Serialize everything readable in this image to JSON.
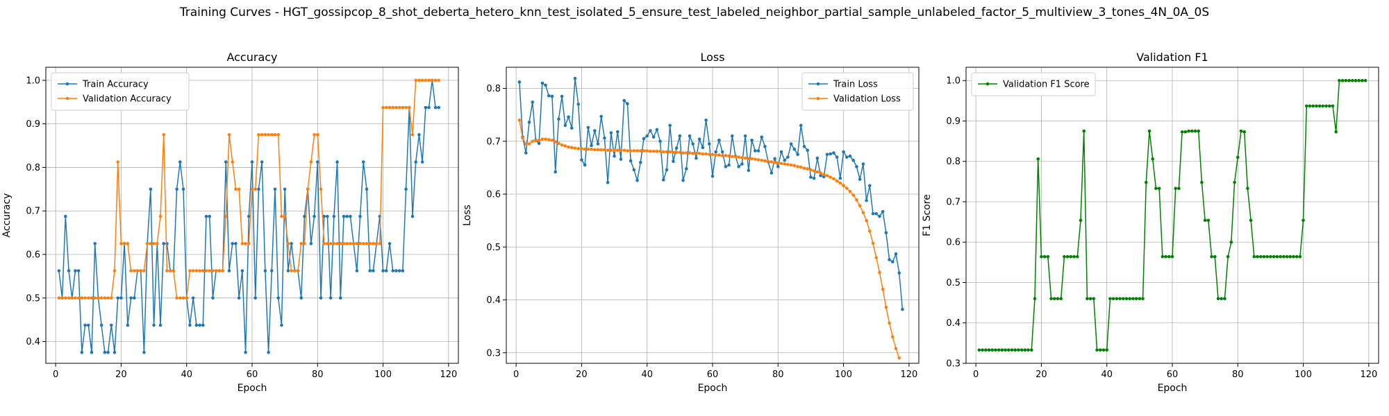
{
  "figure_title": "Training Curves - HGT_gossipcop_8_shot_deberta_hetero_knn_test_isolated_5_ensure_test_labeled_neighbor_partial_sample_unlabeled_factor_5_multiview_3_tones_4N_0A_0S",
  "chart_data": [
    {
      "type": "line",
      "title": "Accuracy",
      "xlabel": "Epoch",
      "ylabel": "Accuracy",
      "xlim": [
        -3,
        123
      ],
      "ylim": [
        0.35,
        1.03
      ],
      "xticks": [
        0,
        20,
        40,
        60,
        80,
        100,
        120
      ],
      "yticks": [
        0.4,
        0.5,
        0.6,
        0.7,
        0.8,
        0.9,
        1.0
      ],
      "grid": true,
      "legend_position": "upper-left",
      "series": [
        {
          "name": "Train Accuracy",
          "color": "#1f77b4",
          "x_start": 1,
          "values": [
            0.5625,
            0.5,
            0.6875,
            0.5625,
            0.5,
            0.5625,
            0.5625,
            0.375,
            0.4375,
            0.4375,
            0.375,
            0.625,
            0.5,
            0.4375,
            0.375,
            0.375,
            0.4375,
            0.375,
            0.5,
            0.5,
            0.625,
            0.4375,
            0.5,
            0.5,
            0.5625,
            0.5625,
            0.375,
            0.625,
            0.75,
            0.4375,
            0.625,
            0.4375,
            0.625,
            0.625,
            0.5625,
            0.5625,
            0.75,
            0.8125,
            0.75,
            0.5,
            0.4375,
            0.5,
            0.4375,
            0.4375,
            0.4375,
            0.6875,
            0.6875,
            0.5,
            0.5625,
            0.5625,
            0.5625,
            0.8125,
            0.5625,
            0.625,
            0.625,
            0.5,
            0.5625,
            0.375,
            0.6875,
            0.8125,
            0.5,
            0.75,
            0.8125,
            0.5625,
            0.375,
            0.5625,
            0.75,
            0.5,
            0.4375,
            0.75,
            0.5625,
            0.625,
            0.5625,
            0.5625,
            0.5,
            0.6875,
            0.75,
            0.625,
            0.6875,
            0.8125,
            0.5,
            0.6875,
            0.6875,
            0.5,
            0.6875,
            0.8125,
            0.5,
            0.6875,
            0.6875,
            0.6875,
            0.625,
            0.5625,
            0.6875,
            0.8125,
            0.75,
            0.5625,
            0.5625,
            0.625,
            0.6875,
            0.5625,
            0.5625,
            0.625,
            0.5625,
            0.5625,
            0.5625,
            0.5625,
            0.75,
            0.9375,
            0.6875,
            0.8125,
            0.875,
            0.8125,
            0.9375,
            0.9375,
            1.0,
            0.9375,
            0.9375
          ]
        },
        {
          "name": "Validation Accuracy",
          "color": "#ff7f0e",
          "x_start": 1,
          "values": [
            0.5,
            0.5,
            0.5,
            0.5,
            0.5,
            0.5,
            0.5,
            0.5,
            0.5,
            0.5,
            0.5,
            0.5,
            0.5,
            0.5,
            0.5,
            0.5,
            0.5,
            0.5625,
            0.8125,
            0.625,
            0.625,
            0.625,
            0.5625,
            0.5625,
            0.5625,
            0.5625,
            0.5625,
            0.625,
            0.625,
            0.625,
            0.625,
            0.6875,
            0.875,
            0.5625,
            0.5625,
            0.5625,
            0.5,
            0.5,
            0.5,
            0.5,
            0.5625,
            0.5625,
            0.5625,
            0.5625,
            0.5625,
            0.5625,
            0.5625,
            0.5625,
            0.5625,
            0.5625,
            0.5625,
            0.6875,
            0.875,
            0.8125,
            0.75,
            0.75,
            0.625,
            0.625,
            0.625,
            0.75,
            0.75,
            0.875,
            0.875,
            0.875,
            0.875,
            0.875,
            0.875,
            0.875,
            0.6875,
            0.6875,
            0.625,
            0.5625,
            0.5625,
            0.5625,
            0.625,
            0.625,
            0.75,
            0.8125,
            0.875,
            0.875,
            0.75,
            0.625,
            0.625,
            0.625,
            0.625,
            0.625,
            0.625,
            0.625,
            0.625,
            0.625,
            0.625,
            0.625,
            0.625,
            0.625,
            0.625,
            0.625,
            0.625,
            0.625,
            0.625,
            0.9375,
            0.9375,
            0.9375,
            0.9375,
            0.9375,
            0.9375,
            0.9375,
            0.9375,
            0.9375,
            0.875,
            1.0,
            1.0,
            1.0,
            1.0,
            1.0,
            1.0,
            1.0,
            1.0
          ]
        }
      ]
    },
    {
      "type": "line",
      "title": "Loss",
      "xlabel": "Epoch",
      "ylabel": "Loss",
      "xlim": [
        -3,
        123
      ],
      "ylim": [
        0.28,
        0.84
      ],
      "xticks": [
        0,
        20,
        40,
        60,
        80,
        100,
        120
      ],
      "yticks": [
        0.3,
        0.4,
        0.5,
        0.6,
        0.7,
        0.8
      ],
      "grid": true,
      "legend_position": "upper-right",
      "series": [
        {
          "name": "Train Loss",
          "color": "#1f77b4",
          "x_start": 1,
          "values": [
            0.812,
            0.708,
            0.678,
            0.736,
            0.774,
            0.702,
            0.696,
            0.81,
            0.806,
            0.786,
            0.785,
            0.642,
            0.742,
            0.785,
            0.73,
            0.746,
            0.725,
            0.819,
            0.77,
            0.665,
            0.655,
            0.726,
            0.692,
            0.72,
            0.695,
            0.747,
            0.706,
            0.622,
            0.716,
            0.672,
            0.718,
            0.666,
            0.777,
            0.771,
            0.663,
            0.646,
            0.626,
            0.66,
            0.705,
            0.71,
            0.72,
            0.708,
            0.722,
            0.7,
            0.627,
            0.646,
            0.73,
            0.662,
            0.687,
            0.71,
            0.626,
            0.648,
            0.71,
            0.695,
            0.668,
            0.704,
            0.688,
            0.74,
            0.695,
            0.634,
            0.68,
            0.702,
            0.68,
            0.652,
            0.655,
            0.71,
            0.672,
            0.652,
            0.657,
            0.71,
            0.645,
            0.702,
            0.682,
            0.682,
            0.708,
            0.69,
            0.661,
            0.64,
            0.667,
            0.652,
            0.68,
            0.664,
            0.67,
            0.695,
            0.685,
            0.675,
            0.73,
            0.69,
            0.683,
            0.632,
            0.63,
            0.668,
            0.635,
            0.633,
            0.675,
            0.676,
            0.678,
            0.67,
            0.63,
            0.68,
            0.67,
            0.672,
            0.664,
            0.652,
            0.628,
            0.657,
            0.588,
            0.616,
            0.563,
            0.563,
            0.558,
            0.567,
            0.527,
            0.476,
            0.472,
            0.487,
            0.451,
            0.382
          ]
        },
        {
          "name": "Validation Loss",
          "color": "#ff7f0e",
          "x_start": 1,
          "values": [
            0.74,
            0.706,
            0.695,
            0.695,
            0.7,
            0.701,
            0.702,
            0.704,
            0.704,
            0.703,
            0.702,
            0.699,
            0.696,
            0.693,
            0.691,
            0.689,
            0.688,
            0.687,
            0.686,
            0.686,
            0.685,
            0.685,
            0.685,
            0.684,
            0.684,
            0.684,
            0.684,
            0.683,
            0.683,
            0.683,
            0.683,
            0.683,
            0.683,
            0.682,
            0.682,
            0.682,
            0.682,
            0.682,
            0.682,
            0.682,
            0.681,
            0.681,
            0.681,
            0.681,
            0.68,
            0.68,
            0.68,
            0.679,
            0.679,
            0.679,
            0.678,
            0.678,
            0.678,
            0.677,
            0.677,
            0.677,
            0.676,
            0.676,
            0.675,
            0.675,
            0.674,
            0.674,
            0.673,
            0.673,
            0.672,
            0.671,
            0.671,
            0.67,
            0.669,
            0.668,
            0.667,
            0.667,
            0.666,
            0.665,
            0.664,
            0.663,
            0.662,
            0.661,
            0.66,
            0.659,
            0.658,
            0.657,
            0.656,
            0.655,
            0.654,
            0.652,
            0.651,
            0.649,
            0.648,
            0.646,
            0.644,
            0.642,
            0.64,
            0.637,
            0.635,
            0.632,
            0.629,
            0.625,
            0.621,
            0.616,
            0.611,
            0.605,
            0.598,
            0.589,
            0.578,
            0.565,
            0.55,
            0.53,
            0.507,
            0.48,
            0.452,
            0.42,
            0.386,
            0.356,
            0.33,
            0.308,
            0.29
          ]
        }
      ]
    },
    {
      "type": "line",
      "title": "Validation F1",
      "xlabel": "Epoch",
      "ylabel": "F1 Score",
      "xlim": [
        -3,
        123
      ],
      "ylim": [
        0.3,
        1.033
      ],
      "xticks": [
        0,
        20,
        40,
        60,
        80,
        100,
        120
      ],
      "yticks": [
        0.3,
        0.4,
        0.5,
        0.6,
        0.7,
        0.8,
        0.9,
        1.0
      ],
      "grid": true,
      "legend_position": "upper-left",
      "series": [
        {
          "name": "Validation F1 Score",
          "color": "#008000",
          "x_start": 1,
          "values": [
            0.333,
            0.333,
            0.333,
            0.333,
            0.333,
            0.333,
            0.333,
            0.333,
            0.333,
            0.333,
            0.333,
            0.333,
            0.333,
            0.333,
            0.333,
            0.333,
            0.333,
            0.46,
            0.806,
            0.564,
            0.564,
            0.564,
            0.46,
            0.46,
            0.46,
            0.46,
            0.564,
            0.564,
            0.564,
            0.564,
            0.564,
            0.654,
            0.875,
            0.46,
            0.46,
            0.46,
            0.333,
            0.333,
            0.333,
            0.333,
            0.46,
            0.46,
            0.46,
            0.46,
            0.46,
            0.46,
            0.46,
            0.46,
            0.46,
            0.46,
            0.46,
            0.748,
            0.875,
            0.806,
            0.733,
            0.733,
            0.564,
            0.564,
            0.564,
            0.564,
            0.733,
            0.733,
            0.873,
            0.873,
            0.875,
            0.875,
            0.875,
            0.875,
            0.748,
            0.654,
            0.654,
            0.564,
            0.564,
            0.46,
            0.46,
            0.46,
            0.564,
            0.6,
            0.748,
            0.81,
            0.875,
            0.873,
            0.733,
            0.654,
            0.564,
            0.564,
            0.564,
            0.564,
            0.564,
            0.564,
            0.564,
            0.564,
            0.564,
            0.564,
            0.564,
            0.564,
            0.564,
            0.564,
            0.564,
            0.654,
            0.937,
            0.937,
            0.937,
            0.937,
            0.937,
            0.937,
            0.937,
            0.937,
            0.937,
            0.873,
            1.0,
            1.0,
            1.0,
            1.0,
            1.0,
            1.0,
            1.0,
            1.0,
            1.0
          ]
        }
      ]
    }
  ]
}
